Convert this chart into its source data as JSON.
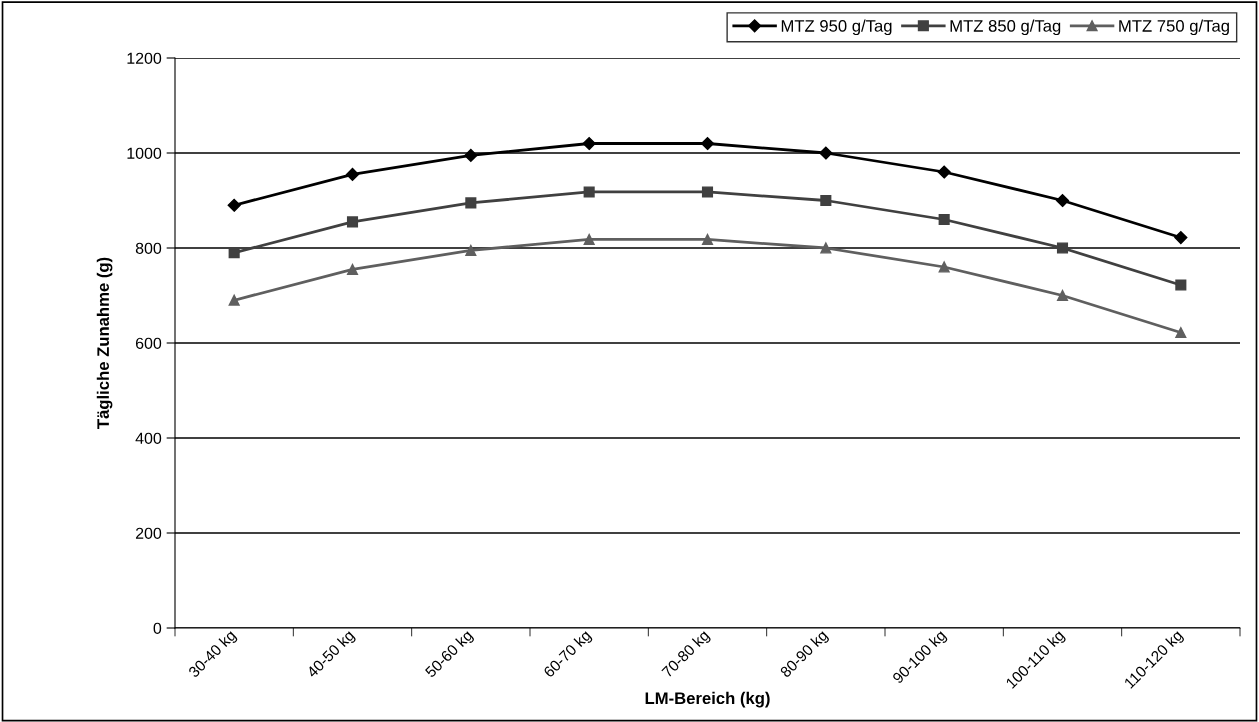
{
  "chart_data": {
    "type": "line",
    "xlabel": "LM-Bereich (kg)",
    "ylabel": "Tägliche Zunahme (g)",
    "categories": [
      "30-40 kg",
      "40-50 kg",
      "50-60 kg",
      "60-70 kg",
      "70-80 kg",
      "80-90 kg",
      "90-100 kg",
      "100-110 kg",
      "110-120 kg"
    ],
    "series": [
      {
        "name": "MTZ 950 g/Tag",
        "color": "#000000",
        "marker": "diamond",
        "values": [
          890,
          955,
          995,
          1020,
          1020,
          1000,
          960,
          900,
          822
        ]
      },
      {
        "name": "MTZ 850 g/Tag",
        "color": "#404040",
        "marker": "square",
        "values": [
          790,
          855,
          895,
          918,
          918,
          900,
          860,
          800,
          722
        ]
      },
      {
        "name": "MTZ 750 g/Tag",
        "color": "#5f5f5f",
        "marker": "triangle",
        "values": [
          690,
          755,
          795,
          818,
          818,
          800,
          760,
          700,
          622
        ]
      }
    ],
    "ylim": [
      0,
      1200
    ],
    "yticks": [
      0,
      200,
      400,
      600,
      800,
      1000,
      1200
    ],
    "grid": "y",
    "legend": "top right",
    "line_style": "solid"
  }
}
